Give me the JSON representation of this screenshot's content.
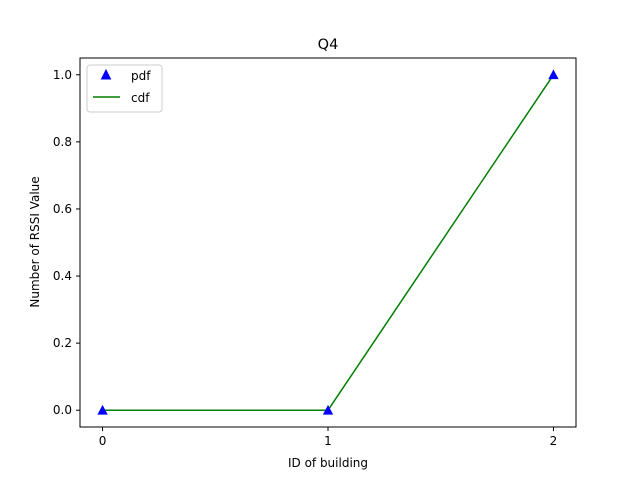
{
  "chart_data": {
    "type": "line",
    "title": "Q4",
    "xlabel": "ID of building",
    "ylabel": "Number of RSSI Value",
    "x": [
      0,
      1,
      2
    ],
    "xlim": [
      -0.1,
      2.1
    ],
    "ylim": [
      -0.05,
      1.05
    ],
    "xticks": [
      0,
      1,
      2
    ],
    "yticks": [
      0.0,
      0.2,
      0.4,
      0.6,
      0.8,
      1.0
    ],
    "xtick_labels": [
      "0",
      "1",
      "2"
    ],
    "ytick_labels": [
      "0.0",
      "0.2",
      "0.4",
      "0.6",
      "0.8",
      "1.0"
    ],
    "grid": false,
    "legend_position": "top-left",
    "series": [
      {
        "name": "pdf",
        "kind": "scatter",
        "marker": "triangle-up",
        "color": "#0000ff",
        "values": [
          0,
          0,
          1
        ]
      },
      {
        "name": "cdf",
        "kind": "line",
        "color": "#008000",
        "values": [
          0,
          0,
          1
        ]
      }
    ]
  }
}
